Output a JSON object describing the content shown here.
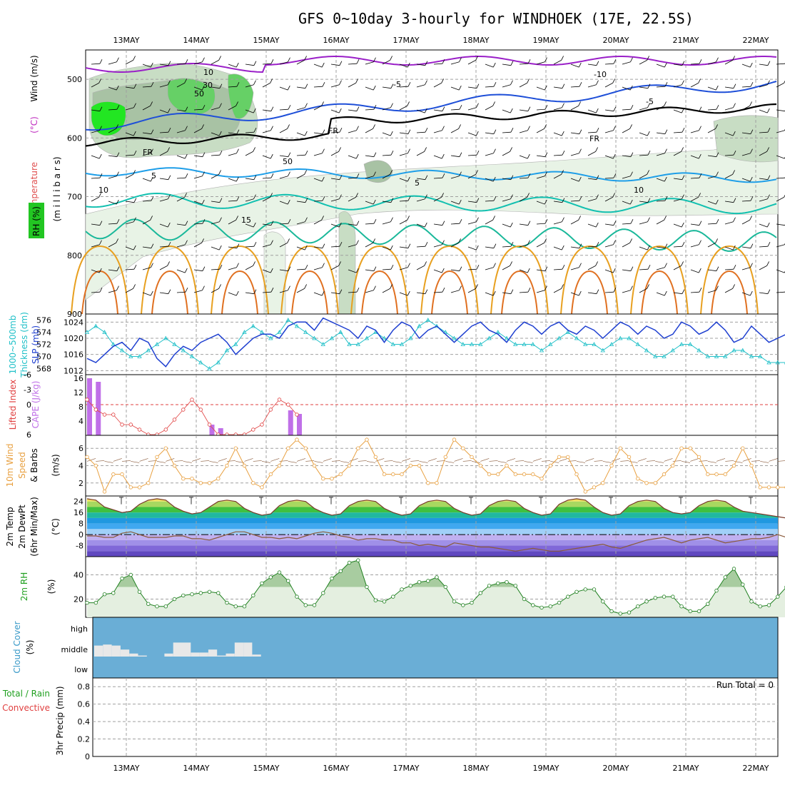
{
  "title": "GFS 0~10day 3-hourly for WINDHOEK (17E, 22.5S)",
  "colors": {
    "background": "#ffffff",
    "grid": "#a0a0a0",
    "rh_fill_light": "#e8f3e6",
    "rh_fill_mid": "#c8ddc4",
    "rh_fill_dark": "#a8c2a4",
    "rh_bright": "#22e622",
    "temp_purple": "#9a1fc8",
    "temp_blue": "#1e4fd8",
    "temp_lightblue": "#1e9ee8",
    "temp_teal": "#12c0b0",
    "temp_green": "#1ab89a",
    "temp_yellow": "#e8a020",
    "temp_orange": "#e07020",
    "slp_line": "#1e3fd0",
    "thickness_line": "#20c0c8",
    "cape_bar": "#c070e8",
    "lifted_index": "#e04040",
    "wind_speed": "#e8a040",
    "dewpoint": "#8a5a3a",
    "rh2m_line": "#208020",
    "cloud_bg": "#6aaed6",
    "cloud_fill": "#e8e8e8"
  },
  "chart_data": [
    {
      "panel": "upper-air",
      "type": "heatmap",
      "ylabel_temperature": "Temperature",
      "ylabel_temperature_unit": "(°C)",
      "ylabel_wind": "Wind (m/s)",
      "ylabel_pressure": "(m i l l i b a r s)",
      "legend_rh": "RH (%)",
      "x_ticks": [
        "13MAY",
        "14MAY",
        "15MAY",
        "16MAY",
        "17MAY",
        "18MAY",
        "19MAY",
        "20MAY",
        "21MAY",
        "22MAY"
      ],
      "y_ticks": [
        500,
        600,
        700,
        800,
        900
      ],
      "ylim": [
        450,
        900
      ],
      "contour_labels": [
        "-10",
        "-5",
        "-5",
        "FR",
        "FR",
        "FR",
        "5",
        "5",
        "10",
        "15",
        "10",
        "30",
        "50",
        "50",
        "10"
      ]
    },
    {
      "panel": "slp-thickness",
      "type": "line",
      "ylabel_left": "1000~500mb",
      "ylabel_left2": "Thickness (dm)",
      "ylabel_right": "SLP (mb)",
      "y_ticks_thickness": [
        568,
        570,
        572,
        574,
        576
      ],
      "y_ticks_slp": [
        1012,
        1016,
        1020,
        1024
      ],
      "ylim_slp": [
        1011,
        1026
      ],
      "slp": [
        1015,
        1014,
        1016,
        1018,
        1019,
        1017,
        1020,
        1019,
        1015,
        1013,
        1016,
        1018,
        1017,
        1019,
        1020,
        1021,
        1019,
        1016,
        1018,
        1020,
        1021,
        1021,
        1020,
        1023,
        1024,
        1024,
        1022,
        1025,
        1024,
        1023,
        1022,
        1020,
        1023,
        1022,
        1019,
        1022,
        1024,
        1023,
        1020,
        1022,
        1023,
        1021,
        1019,
        1021,
        1023,
        1024,
        1022,
        1021,
        1019,
        1022,
        1024,
        1023,
        1021,
        1023,
        1024,
        1022,
        1021,
        1023,
        1022,
        1020,
        1022,
        1024,
        1023,
        1021,
        1023,
        1022,
        1020,
        1021,
        1024,
        1023,
        1021,
        1022,
        1024,
        1022,
        1019,
        1020,
        1023,
        1021,
        1019,
        1020,
        1021
      ],
      "thickness": [
        574,
        575,
        574,
        572,
        571,
        570,
        570,
        571,
        572,
        573,
        572,
        571,
        570,
        569,
        568,
        569,
        571,
        572,
        574,
        575,
        574,
        573,
        574,
        576,
        575,
        574,
        573,
        572,
        573,
        574,
        572,
        572,
        573,
        574,
        573,
        572,
        572,
        573,
        575,
        576,
        575,
        574,
        573,
        572,
        572,
        572,
        573,
        574,
        573,
        572,
        572,
        572,
        571,
        572,
        573,
        574,
        573,
        572,
        572,
        571,
        572,
        573,
        573,
        572,
        571,
        570,
        570,
        571,
        572,
        572,
        571,
        570,
        570,
        570,
        571,
        571,
        570,
        570,
        569,
        569,
        569
      ]
    },
    {
      "panel": "cape-li",
      "type": "bar",
      "ylabel_left": "Lifted Index",
      "ylabel_right": "CAPE (J/kg)",
      "y_ticks_li": [
        "-6",
        "-3",
        "0",
        "3",
        "6"
      ],
      "y_ticks_cape": [
        4,
        8,
        12,
        16
      ],
      "cape": [
        16,
        15,
        0,
        0,
        0,
        0,
        0,
        0,
        0,
        0,
        0,
        0,
        0,
        0,
        3,
        2,
        0,
        0,
        0,
        0,
        0,
        0,
        0,
        7,
        6,
        0
      ],
      "lifted_index": [
        -1,
        1,
        2,
        2,
        4,
        4,
        5,
        6,
        6,
        5,
        3,
        1,
        -1,
        1,
        4,
        6,
        6,
        6,
        6,
        5,
        4,
        1,
        -1,
        0,
        2
      ]
    },
    {
      "panel": "wind10m",
      "type": "line",
      "ylabel": "10m Wind",
      "ylabel2": "Speed",
      "ylabel3": "(m/s)",
      "ylabel4": "& Barbs",
      "y_ticks": [
        2,
        4,
        6
      ],
      "ylim": [
        0.5,
        7.5
      ],
      "speed": [
        5,
        4,
        1,
        3,
        3,
        1.5,
        1.5,
        2,
        5,
        6,
        4,
        2.5,
        2.5,
        2,
        2,
        2.5,
        4,
        6,
        4,
        2,
        1.5,
        3,
        4,
        6,
        7,
        6,
        4,
        2.5,
        2.5,
        3,
        4,
        6,
        7,
        5,
        3,
        3,
        3,
        4,
        4,
        2,
        2,
        5,
        7,
        6,
        5,
        4,
        3,
        3,
        4,
        3,
        3,
        3,
        2.5,
        4,
        5,
        5,
        3,
        1,
        1.5,
        2,
        4,
        6,
        5,
        2.5,
        2,
        2,
        3,
        4,
        6,
        6,
        5,
        3,
        3,
        3,
        4,
        6,
        4,
        1.5,
        1.5,
        1.5,
        1.5,
        4
      ]
    },
    {
      "panel": "temp2m",
      "type": "area",
      "ylabel": "2m Temp",
      "ylabel2": "2m DewPt",
      "ylabel3": "(6hr Min/Max)",
      "unit": "(°C)",
      "y_ticks": [
        24,
        16,
        8,
        0,
        -8
      ],
      "ylim": [
        -16,
        28
      ],
      "temp": [
        26,
        25,
        20,
        18,
        16,
        17,
        22,
        25,
        26,
        25,
        20,
        17,
        15,
        16,
        20,
        24,
        25,
        24,
        19,
        16,
        14,
        15,
        21,
        24,
        25,
        24,
        19,
        16,
        14,
        15,
        21,
        24,
        25,
        24,
        19,
        16,
        14,
        15,
        21,
        24,
        25,
        24,
        19,
        16,
        14,
        15,
        21,
        24,
        25,
        24,
        19,
        16,
        14,
        15,
        22,
        25,
        26,
        25,
        20,
        16,
        14,
        15,
        21,
        24,
        25,
        24,
        19,
        16,
        15,
        16,
        21,
        24,
        25,
        24,
        20,
        17,
        16,
        15,
        14,
        13,
        12
      ],
      "dewpoint": [
        -1,
        -1,
        -2,
        -2,
        1,
        2,
        0,
        -2,
        -2,
        -2,
        -1,
        -1,
        -3,
        -3,
        -4,
        -2,
        0,
        2,
        2,
        0,
        -2,
        -2,
        -3,
        -2,
        -3,
        -1,
        1,
        2,
        1,
        -1,
        -2,
        -4,
        -3,
        -3,
        -4,
        -4,
        -6,
        -6,
        -8,
        -7,
        -8,
        -9,
        -6,
        -7,
        -8,
        -9,
        -9,
        -10,
        -11,
        -12,
        -11,
        -10,
        -11,
        -12,
        -12,
        -11,
        -10,
        -9,
        -8,
        -7,
        -9,
        -10,
        -8,
        -6,
        -4,
        -3,
        -2,
        -4,
        -6,
        -4,
        -3,
        -2,
        -4,
        -6,
        -5,
        -4,
        -3,
        -3,
        -2,
        0,
        -2
      ]
    },
    {
      "panel": "rh2m",
      "type": "area",
      "ylabel": "2m RH",
      "unit": "(%)",
      "y_ticks": [
        20,
        40
      ],
      "ylim": [
        5,
        55
      ],
      "rh": [
        17,
        17,
        24,
        25,
        37,
        40,
        26,
        16,
        14,
        14,
        20,
        23,
        24,
        25,
        26,
        25,
        17,
        14,
        14,
        23,
        33,
        38,
        42,
        35,
        22,
        15,
        15,
        25,
        37,
        43,
        50,
        52,
        30,
        19,
        18,
        22,
        28,
        31,
        34,
        35,
        38,
        30,
        18,
        15,
        17,
        25,
        31,
        33,
        34,
        31,
        20,
        15,
        13,
        14,
        17,
        22,
        26,
        28,
        28,
        18,
        10,
        8,
        9,
        14,
        18,
        21,
        22,
        22,
        14,
        10,
        10,
        16,
        27,
        38,
        45,
        32,
        18,
        14,
        15,
        22,
        30,
        40,
        47,
        36
      ]
    },
    {
      "panel": "cloud",
      "type": "bar",
      "ylabel": "Cloud Cover",
      "unit": "(%)",
      "y_ticks": [
        "high",
        "middle",
        "low"
      ],
      "middle_cloud": [
        0.55,
        0.6,
        0.55,
        0.35,
        0.15,
        0.05,
        0,
        0,
        0.15,
        0.7,
        0.7,
        0.2,
        0.2,
        0.35,
        0.05,
        0.15,
        0.7,
        0.7,
        0.1
      ]
    },
    {
      "panel": "precip",
      "type": "bar",
      "ylabel": "3hr Precip (mm)",
      "legend_total": "Total / Rain",
      "legend_convective": "Convective",
      "run_total": "Run Total = 0",
      "y_ticks": [
        "0",
        "0.2",
        "0.4",
        "0.6",
        "0.8"
      ],
      "ylim": [
        0,
        0.9
      ],
      "x_ticks": [
        "13MAY",
        "14MAY",
        "15MAY",
        "16MAY",
        "17MAY",
        "18MAY",
        "19MAY",
        "20MAY",
        "21MAY",
        "22MAY"
      ]
    }
  ]
}
